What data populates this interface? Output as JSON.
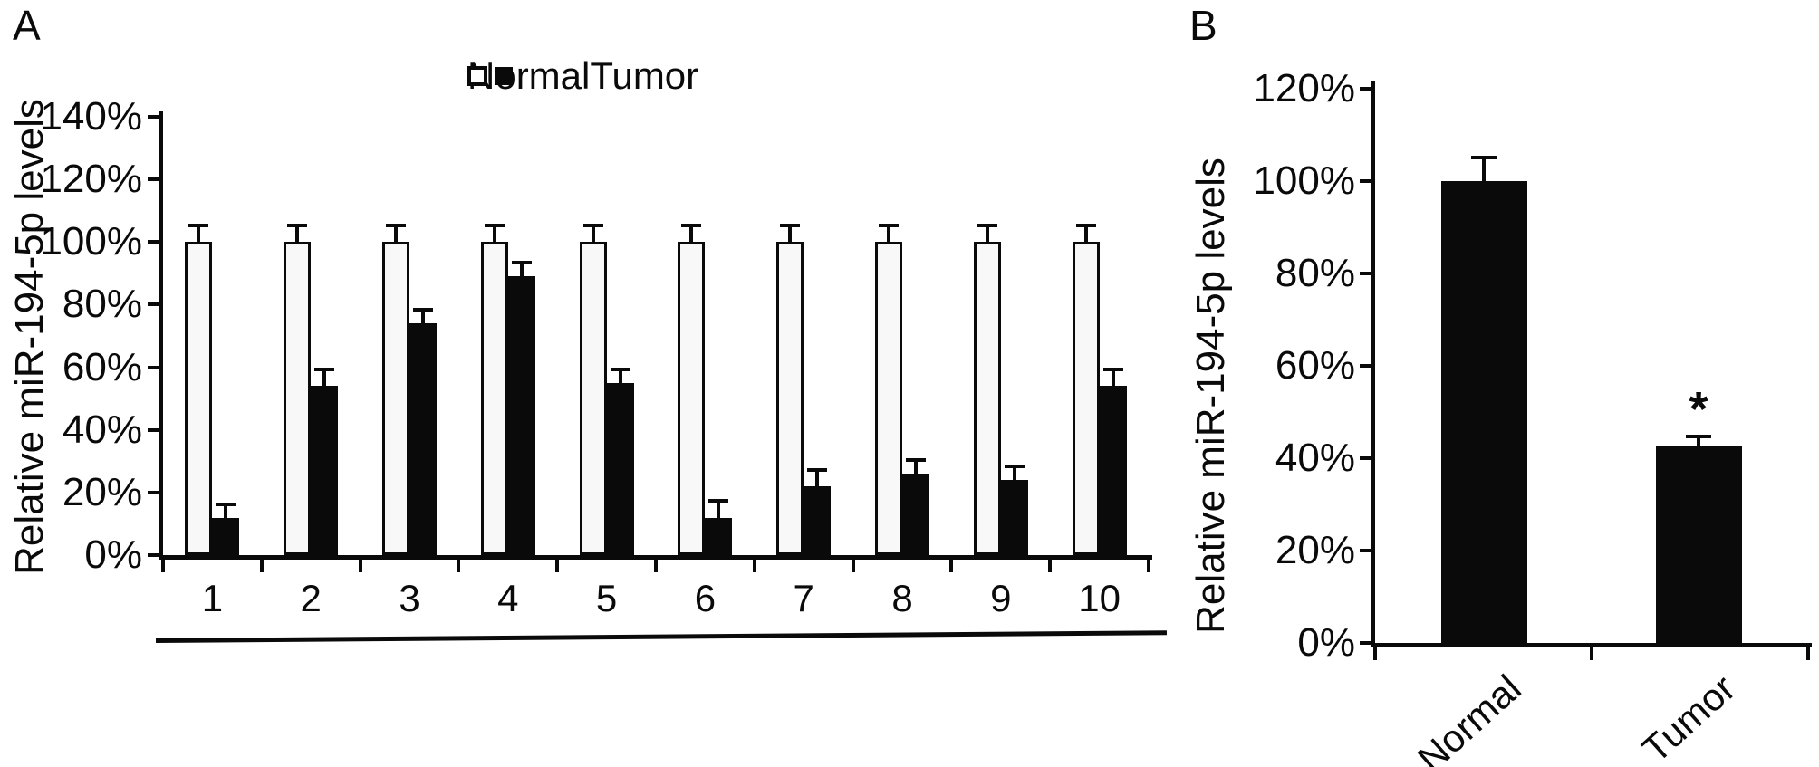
{
  "figure": {
    "panel_a_label": "A",
    "panel_b_label": "B"
  },
  "chart_data": [
    {
      "panel": "A",
      "type": "bar",
      "title": "",
      "xlabel": "",
      "ylabel": "Relative miR-194-5p levels",
      "ylim": [
        0,
        140
      ],
      "ytick_step": 20,
      "ytick_labels": [
        "0%",
        "20%",
        "40%",
        "60%",
        "80%",
        "100%",
        "120%",
        "140%"
      ],
      "categories": [
        "1",
        "2",
        "3",
        "4",
        "5",
        "6",
        "7",
        "8",
        "9",
        "10"
      ],
      "legend_position": "top",
      "grid": false,
      "category_axis_underline": true,
      "series": [
        {
          "name": "Normal",
          "fill": "#f8f8f8",
          "values": [
            100,
            100,
            100,
            100,
            100,
            100,
            100,
            100,
            100,
            100
          ],
          "errors": [
            5,
            5,
            5,
            5,
            5,
            5,
            5,
            5,
            5,
            5
          ]
        },
        {
          "name": "Tumor",
          "fill": "#0a0a0a",
          "values": [
            12,
            54,
            74,
            89,
            55,
            12,
            22,
            26,
            24,
            54
          ],
          "errors": [
            4,
            5,
            4,
            4,
            4,
            5,
            5,
            4,
            4,
            5
          ]
        }
      ]
    },
    {
      "panel": "B",
      "type": "bar",
      "title": "",
      "xlabel": "",
      "ylabel": "Relative miR-194-5p levels",
      "ylim": [
        0,
        120
      ],
      "ytick_step": 20,
      "ytick_labels": [
        "0%",
        "20%",
        "40%",
        "60%",
        "80%",
        "100%",
        "120%"
      ],
      "categories": [
        "Normal",
        "Tumor"
      ],
      "bar_fill": "#0a0a0a",
      "values": [
        100,
        42.5
      ],
      "errors": [
        5,
        2
      ],
      "grid": false,
      "significance": {
        "category": "Tumor",
        "marker": "*"
      }
    }
  ]
}
